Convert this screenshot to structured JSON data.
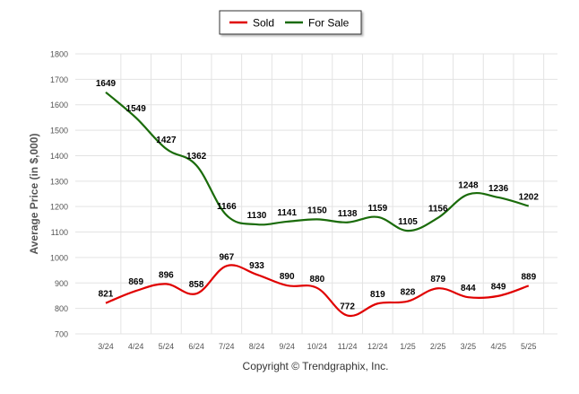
{
  "colors": {
    "sold": "#e00000",
    "for_sale": "#1a6b0a",
    "grid": "#e3e3e3",
    "axis_text": "#555555",
    "label_text": "#000000"
  },
  "footer": {
    "copyright": "Copyright © Trendgraphix, Inc."
  },
  "chart_data": {
    "type": "line",
    "title": "",
    "xlabel": "",
    "ylabel": "Average Price (in $,000)",
    "ylim": [
      700,
      1800
    ],
    "yticks": [
      700,
      800,
      900,
      1000,
      1100,
      1200,
      1300,
      1400,
      1500,
      1600,
      1700,
      1800
    ],
    "grid": true,
    "legend_position": "top-center",
    "categories": [
      "3/24",
      "4/24",
      "5/24",
      "6/24",
      "7/24",
      "8/24",
      "9/24",
      "10/24",
      "11/24",
      "12/24",
      "1/25",
      "2/25",
      "3/25",
      "4/25",
      "5/25"
    ],
    "series": [
      {
        "name": "Sold",
        "key": "sold",
        "values": [
          821,
          869,
          896,
          858,
          967,
          933,
          890,
          880,
          772,
          819,
          828,
          879,
          844,
          849,
          889
        ]
      },
      {
        "name": "For Sale",
        "key": "for_sale",
        "values": [
          1649,
          1549,
          1427,
          1362,
          1166,
          1130,
          1141,
          1150,
          1138,
          1159,
          1105,
          1156,
          1248,
          1236,
          1202
        ]
      }
    ]
  }
}
